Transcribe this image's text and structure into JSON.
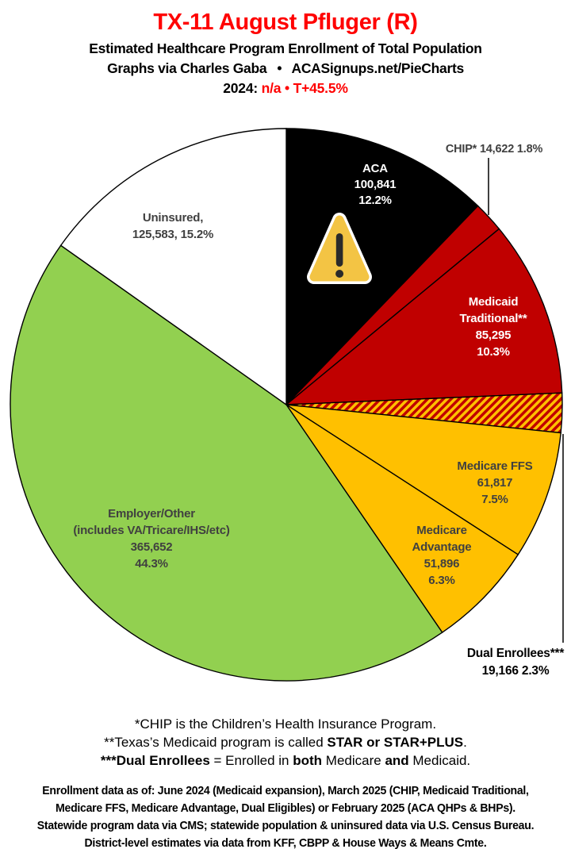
{
  "colors": {
    "accent_red": "#FF0000",
    "label_gray": "#404040",
    "slice_stroke": "#000000",
    "background": "#FFFFFF"
  },
  "header": {
    "title": "TX-11 August Pfluger (R)",
    "subtitle": "Estimated Healthcare Program Enrollment of Total Population",
    "credit": "Graphs via Charles Gaba  •  ACASignups.net/PieCharts",
    "year_line_parts": [
      {
        "t": "2024: ",
        "c": "#000000"
      },
      {
        "t": "n/a",
        "c": "#FF0000"
      },
      {
        "t": " • ",
        "c": "#FF0000"
      },
      {
        "t": "T+45.5%",
        "c": "#FF0000"
      }
    ]
  },
  "chart_data": {
    "type": "pie",
    "title": "TX-11 August Pfluger (R) — Estimated Healthcare Program Enrollment of Total Population",
    "start_angle_deg": 0,
    "direction": "clockwise",
    "slice_stroke": "#000000",
    "hatch": {
      "bg": "#FFC000",
      "stripe": "#C00000"
    },
    "segments": [
      {
        "id": "aca",
        "label": "ACA",
        "value": 100841,
        "display_value": "100,841",
        "pct": 12.2,
        "fill": "#000000"
      },
      {
        "id": "chip",
        "label": "CHIP*",
        "value": 14622,
        "display_value": "14,622",
        "pct": 1.8,
        "fill": "#C00000"
      },
      {
        "id": "medicaid-traditional",
        "label": "Medicaid Traditional**",
        "value": 85295,
        "display_value": "85,295",
        "pct": 10.3,
        "fill": "#C00000"
      },
      {
        "id": "dual-enrollees",
        "label": "Dual Enrollees***",
        "value": 19166,
        "display_value": "19,166",
        "pct": 2.3,
        "fill": "hatch"
      },
      {
        "id": "medicare-ffs",
        "label": "Medicare FFS",
        "value": 61817,
        "display_value": "61,817",
        "pct": 7.5,
        "fill": "#FFC000"
      },
      {
        "id": "medicare-advantage",
        "label": "Medicare Advantage",
        "value": 51896,
        "display_value": "51,896",
        "pct": 6.3,
        "fill": "#FFC000"
      },
      {
        "id": "employer-other",
        "label": "Employer/Other (includes VA/Tricare/IHS/etc)",
        "value": 365652,
        "display_value": "365,652",
        "pct": 44.3,
        "fill": "#92D050"
      },
      {
        "id": "uninsured",
        "label": "Uninsured",
        "value": 125583,
        "display_value": "125,583",
        "pct": 15.2,
        "fill": "#FFFFFF"
      }
    ]
  },
  "slice_labels": {
    "aca": {
      "lines": [
        "ACA",
        "100,841",
        "12.2%"
      ],
      "color": "#FFFFFF"
    },
    "chip": {
      "lines": [
        "CHIP* 14,622 1.8%"
      ],
      "color": "#404040"
    },
    "medicaid": {
      "lines": [
        "Medicaid",
        "Traditional**",
        "85,295",
        "10.3%"
      ],
      "color": "#FFFFFF"
    },
    "dual": {
      "lines": [
        "Dual Enrollees***",
        "19,166 2.3%"
      ],
      "color": "#000000"
    },
    "ffs": {
      "lines": [
        "Medicare FFS",
        "61,817",
        "7.5%"
      ],
      "color": "#404040"
    },
    "advantage": {
      "lines": [
        "Medicare",
        "Advantage",
        "51,896",
        "6.3%"
      ],
      "color": "#404040"
    },
    "employer": {
      "lines": [
        "Employer/Other",
        "(includes VA/Tricare/IHS/etc)",
        "365,652",
        "44.3%"
      ],
      "color": "#404040"
    },
    "uninsured": {
      "lines": [
        "Uninsured,",
        "125,583, 15.2%"
      ],
      "color": "#404040"
    }
  },
  "footnotes": [
    {
      "parts": [
        {
          "t": "*CHIP is the Children’s Health Insurance Program.",
          "b": false
        }
      ]
    },
    {
      "parts": [
        {
          "t": "**Texas’s Medicaid program is called ",
          "b": false
        },
        {
          "t": "STAR or STAR+PLUS",
          "b": true
        },
        {
          "t": ".",
          "b": false
        }
      ]
    },
    {
      "parts": [
        {
          "t": "***Dual Enrollees",
          "b": true
        },
        {
          "t": " = Enrolled in ",
          "b": false
        },
        {
          "t": "both",
          "b": true
        },
        {
          "t": " Medicare ",
          "b": false
        },
        {
          "t": "and",
          "b": true
        },
        {
          "t": " Medicaid.",
          "b": false
        }
      ]
    }
  ],
  "source_lines": [
    "Enrollment data as of: June 2024 (Medicaid expansion), March 2025 (CHIP, Medicaid Traditional,",
    "Medicare FFS, Medicare Advantage, Dual Eligibles) or February 2025 (ACA QHPs & BHPs).",
    "Statewide program data via CMS; statewide population & uninsured data via U.S. Census Bureau.",
    "District-level estimates via data from KFF, CBPP & House Ways & Means Cmte."
  ]
}
